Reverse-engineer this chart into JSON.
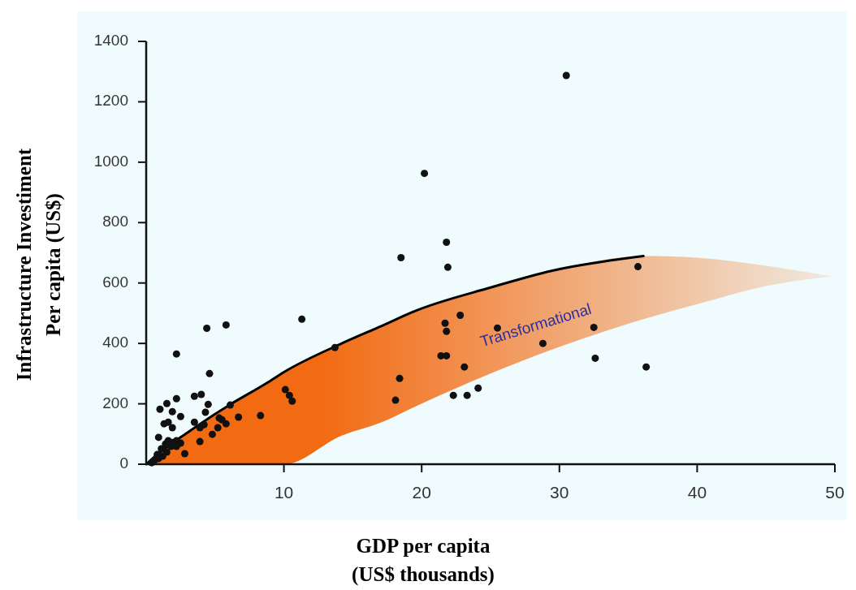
{
  "chart_data": {
    "type": "scatter",
    "xlabel": "GDP per capita\n(US$ thousands)",
    "ylabel": "Infrastructure Investiment\nPer capita (US$)",
    "xlim": [
      0,
      50
    ],
    "xticks": [
      10,
      20,
      30,
      40,
      50
    ],
    "ylim": [
      0,
      1400
    ],
    "yticks": [
      0,
      200,
      400,
      600,
      800,
      1000,
      1200,
      1400
    ],
    "grid": false,
    "annotations": [
      "Transformational"
    ],
    "series": [
      {
        "type": "line",
        "color": "#000000",
        "x": [
          0,
          1,
          3,
          6,
          8.8,
          10,
          14.2,
          17.1,
          19.5,
          25,
          29.5,
          36.1,
          40,
          45,
          49.8
        ],
        "values": [
          0,
          40,
          105,
          195,
          270,
          305,
          400,
          458,
          507,
          585,
          641,
          689,
          null,
          null,
          null
        ],
        "upper": [
          0,
          40,
          105,
          195,
          270,
          305,
          400,
          458,
          507,
          585,
          641,
          689,
          684,
          657,
          622
        ],
        "lower": [
          0,
          0,
          0,
          0,
          0,
          0,
          95,
          139,
          190,
          300,
          380,
          480,
          530,
          590,
          622
        ]
      },
      {
        "color": "#111111",
        "marker": "circle",
        "x": [
          30.5,
          20.2,
          21.8,
          21.9,
          18.5,
          11.3,
          13.7,
          22.8,
          21.7,
          21.8,
          25.5,
          28.8,
          21.4,
          21.8,
          23.1,
          18.4,
          18.1,
          22.3,
          23.3,
          24.1,
          10.1,
          10.4,
          10.6,
          35.7,
          32.5,
          32.6,
          36.3,
          4.4,
          5.8,
          2.2,
          4.6,
          3.5,
          4.0,
          2.2,
          4.5,
          1.0,
          1.5,
          1.9,
          2.5,
          1.3,
          1.6,
          1.9,
          0.9,
          4.3,
          3.5,
          3.9,
          4.2,
          5.3,
          5.5,
          5.8,
          6.1,
          6.7,
          8.3,
          5.2,
          4.8,
          3.9,
          2.8,
          2.5,
          2.2,
          1.4,
          1.8,
          1.1,
          0.8,
          0.6,
          1.2,
          1.6,
          1.9,
          0.9,
          0.4,
          1.5,
          2.2
        ],
        "values": [
          1287,
          963,
          735,
          652,
          684,
          480,
          386,
          493,
          467,
          440,
          451,
          400,
          359,
          359,
          322,
          284,
          212,
          228,
          228,
          252,
          247,
          228,
          209,
          654,
          453,
          351,
          322,
          450,
          461,
          365,
          300,
          225,
          231,
          217,
          198,
          182,
          201,
          174,
          158,
          134,
          139,
          121,
          89,
          172,
          139,
          121,
          131,
          153,
          147,
          134,
          196,
          156,
          161,
          121,
          99,
          75,
          35,
          70,
          78,
          67,
          59,
          51,
          32,
          13,
          27,
          78,
          72,
          19,
          5,
          40,
          59
        ]
      }
    ]
  }
}
